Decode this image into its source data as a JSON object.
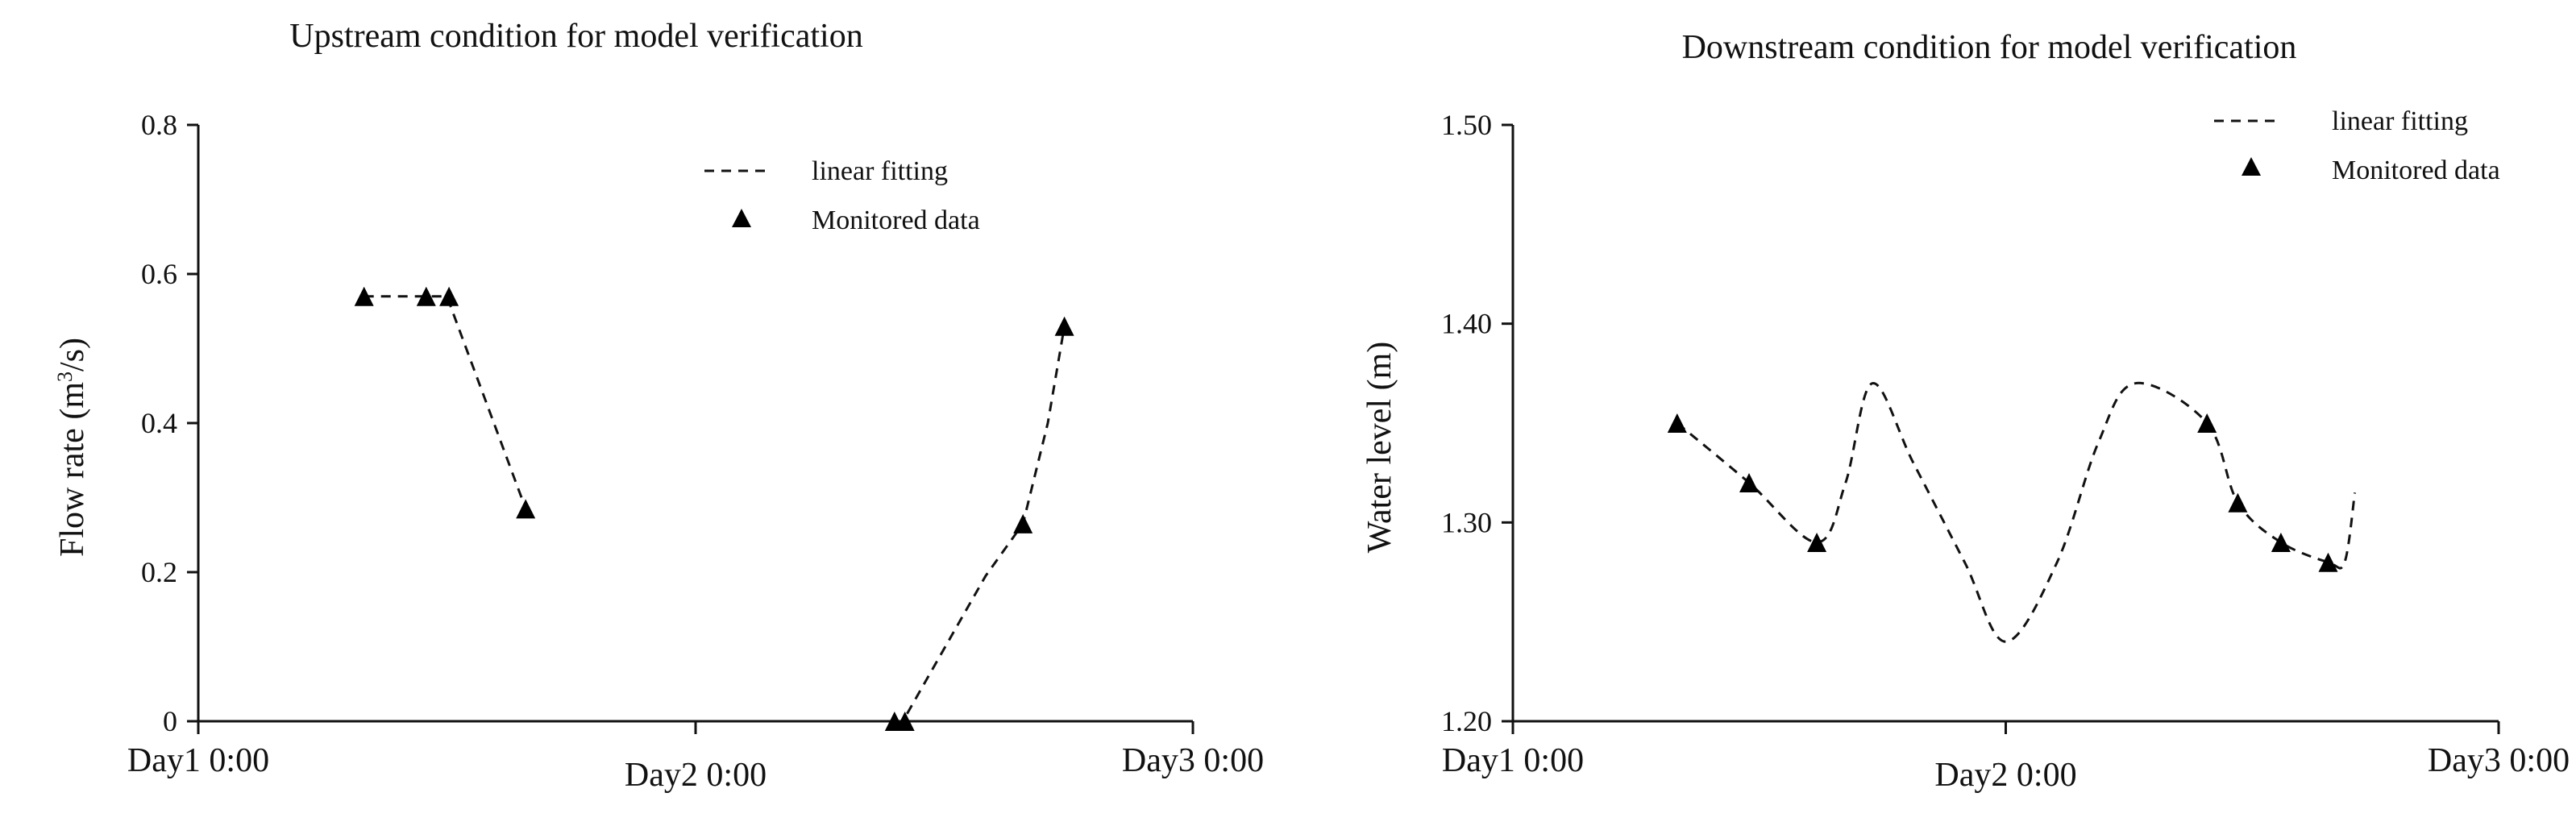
{
  "chart_data": [
    {
      "type": "line",
      "title": "Upstream condition for model verification",
      "xlabel": "",
      "ylabel": "Flow rate (m³/s)",
      "ylabel_main": "Flow rate (m",
      "ylabel_sup": "3",
      "ylabel_tail": "/s)",
      "xlim": [
        0,
        48
      ],
      "ylim": [
        0,
        0.8
      ],
      "x_ticks": [
        0,
        24,
        48
      ],
      "x_tick_labels": [
        "Day1 0:00",
        "Day2 0:00",
        "Day3 0:00"
      ],
      "y_ticks": [
        0,
        0.2,
        0.4,
        0.6,
        0.8
      ],
      "y_tick_labels": [
        "0",
        "0.2",
        "0.4",
        "0.6",
        "0.8"
      ],
      "legend": [
        "linear fitting",
        "Monitored data"
      ],
      "series": [
        {
          "name": "linear fitting",
          "segments": [
            [
              [
                8,
                0.57
              ],
              [
                11,
                0.57
              ],
              [
                12,
                0.57
              ],
              [
                15.8,
                0.285
              ]
            ],
            [
              [
                33.6,
                0
              ],
              [
                34,
                0
              ],
              [
                38,
                0.195
              ],
              [
                39.8,
                0.265
              ],
              [
                41,
                0.4
              ],
              [
                41.8,
                0.53
              ]
            ]
          ]
        },
        {
          "name": "Monitored data",
          "x": [
            8,
            11,
            12.1,
            15.8,
            33.6,
            34.1,
            39.8,
            41.8
          ],
          "y": [
            0.57,
            0.57,
            0.57,
            0.285,
            0,
            0,
            0.265,
            0.53
          ]
        }
      ]
    },
    {
      "type": "line",
      "title": "Downstream condition for model verification",
      "xlabel": "",
      "ylabel": "Water level (m)",
      "xlim": [
        0,
        48
      ],
      "ylim": [
        1.2,
        1.5
      ],
      "x_ticks": [
        0,
        24,
        48
      ],
      "x_tick_labels": [
        "Day1 0:00",
        "Day2 0:00",
        "Day3 0:00"
      ],
      "y_ticks": [
        1.2,
        1.3,
        1.4,
        1.5
      ],
      "y_tick_labels": [
        "1.20",
        "1.30",
        "1.40",
        "1.50"
      ],
      "legend": [
        "linear fitting",
        "Monitored data"
      ],
      "series": [
        {
          "name": "linear fitting",
          "curve": [
            [
              8,
              1.35
            ],
            [
              11.5,
              1.32
            ],
            [
              14.8,
              1.29
            ],
            [
              16.2,
              1.32
            ],
            [
              17.5,
              1.37
            ],
            [
              19.5,
              1.33
            ],
            [
              22,
              1.28
            ],
            [
              24,
              1.24
            ],
            [
              26.5,
              1.28
            ],
            [
              28.5,
              1.34
            ],
            [
              30.3,
              1.37
            ],
            [
              33.8,
              1.35
            ],
            [
              35.3,
              1.31
            ],
            [
              37.4,
              1.29
            ],
            [
              39.7,
              1.28
            ],
            [
              40.5,
              1.28
            ],
            [
              41,
              1.315
            ]
          ]
        },
        {
          "name": "Monitored data",
          "x": [
            8,
            11.5,
            14.8,
            33.8,
            35.3,
            37.4,
            39.7
          ],
          "y": [
            1.35,
            1.32,
            1.29,
            1.35,
            1.31,
            1.29,
            1.28
          ]
        }
      ]
    }
  ]
}
